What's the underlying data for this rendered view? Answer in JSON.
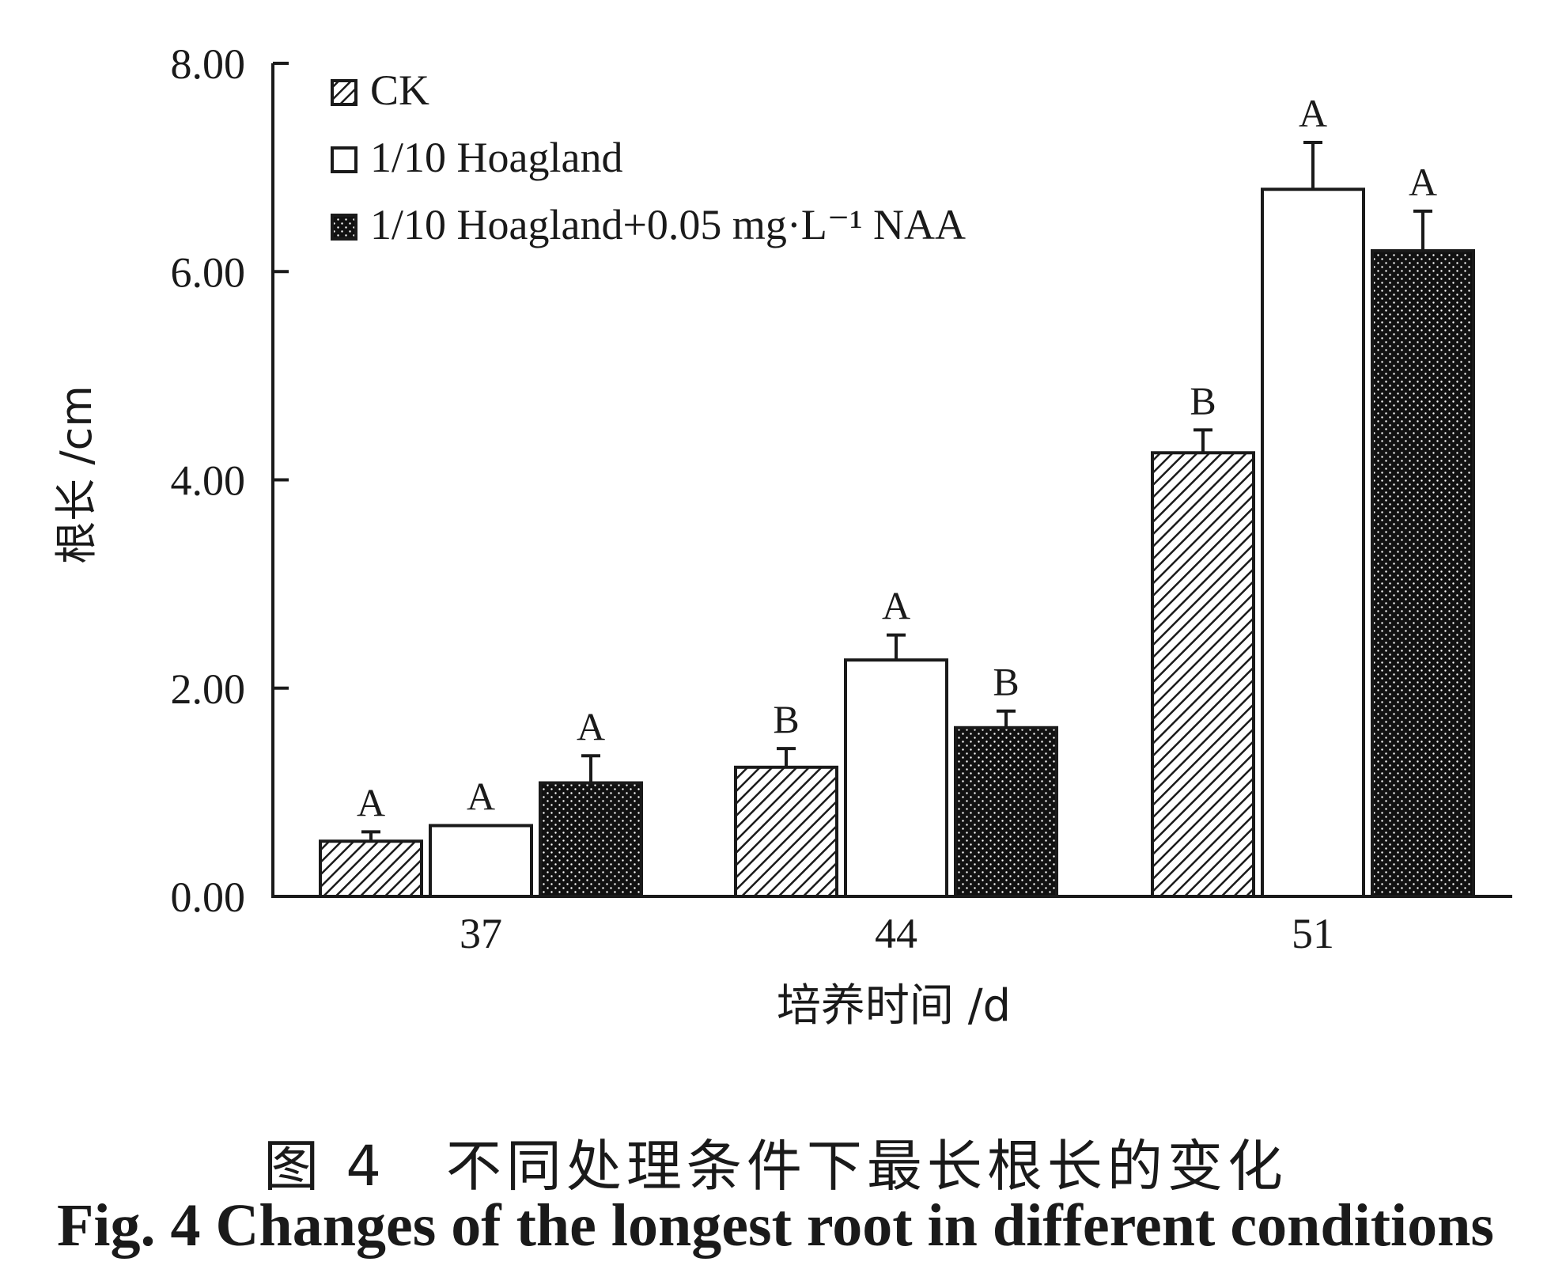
{
  "chart_data": {
    "type": "bar",
    "categories": [
      "37",
      "44",
      "51"
    ],
    "xlabel": "培养时间 /d",
    "ylabel": "根长 /cm",
    "ylim": [
      0,
      8
    ],
    "yticks": [
      "0.00",
      "2.00",
      "4.00",
      "6.00",
      "8.00"
    ],
    "grid": false,
    "legend_position": "top-left",
    "series": [
      {
        "name": "CK",
        "pattern": "hatch",
        "color": "#1a1a1a",
        "values": [
          0.53,
          1.24,
          4.26
        ],
        "errors": [
          0.09,
          0.18,
          0.22
        ],
        "letters": [
          "A",
          "B",
          "B"
        ]
      },
      {
        "name": "1/10 Hoagland",
        "pattern": "open",
        "color": "#ffffff",
        "values": [
          0.68,
          2.27,
          6.79
        ],
        "errors": [
          0.0,
          0.24,
          0.45
        ],
        "letters": [
          "A",
          "A",
          "A"
        ]
      },
      {
        "name": "1/10 Hoagland+0.05 mg·L⁻¹ NAA",
        "pattern": "dotted",
        "color": "#111111",
        "values": [
          1.09,
          1.62,
          6.2
        ],
        "errors": [
          0.26,
          0.16,
          0.38
        ],
        "letters": [
          "A",
          "B",
          "A"
        ]
      }
    ]
  },
  "caption": {
    "cn": "图 4　不同处理条件下最长根长的变化",
    "en": "Fig. 4   Changes of the longest root in different conditions"
  }
}
